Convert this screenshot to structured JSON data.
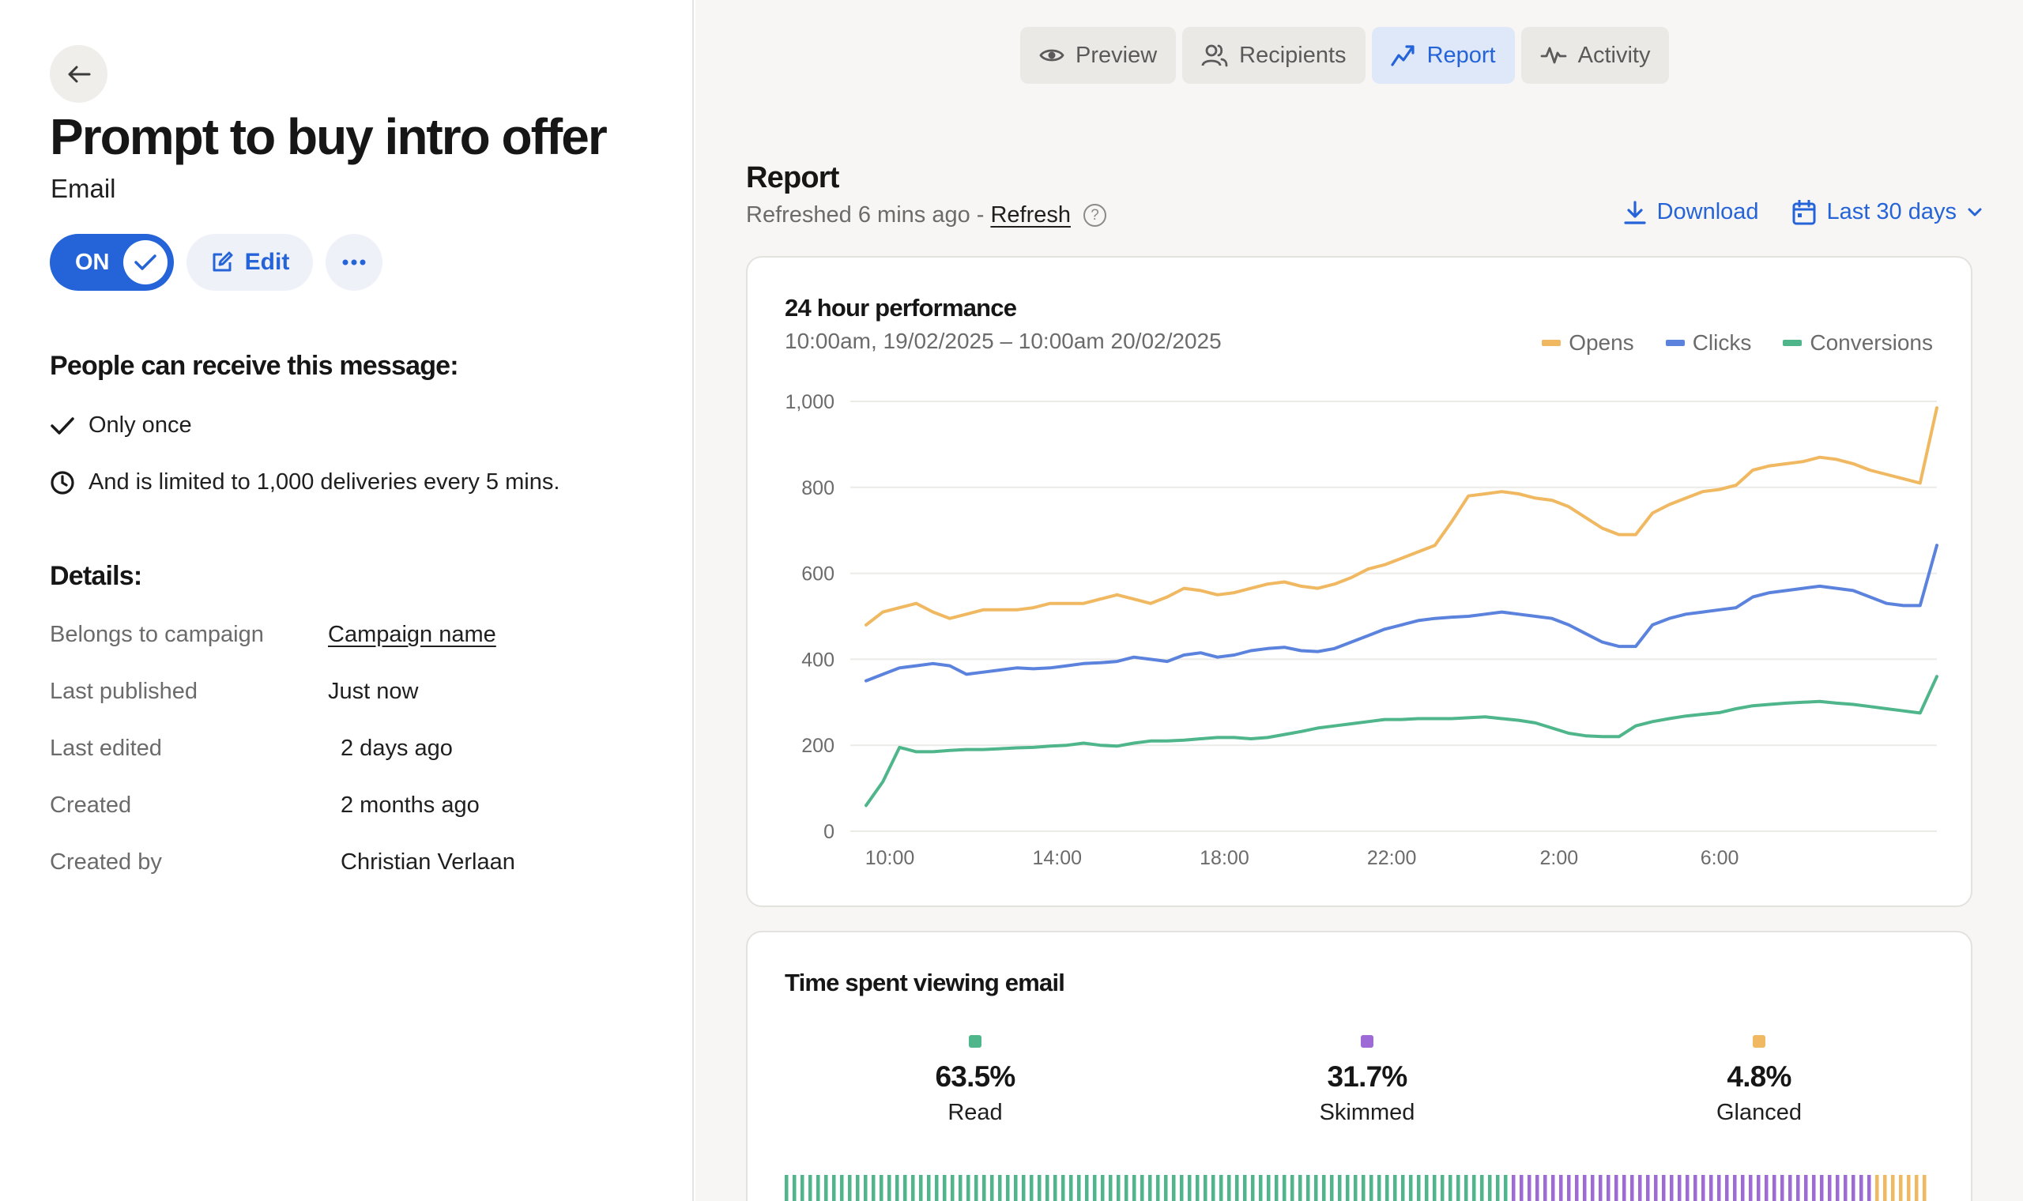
{
  "left": {
    "title": "Prompt to buy intro offer",
    "type": "Email",
    "toggle_label": "ON",
    "edit_label": "Edit",
    "audience_heading": "People can receive this message:",
    "rules": [
      "Only once",
      "And is limited to 1,000 deliveries every 5 mins."
    ],
    "details_heading": "Details:",
    "details": [
      {
        "label": "Belongs to campaign",
        "value": "Campaign name"
      },
      {
        "label": "Last published",
        "value": "Just now"
      },
      {
        "label": "Last edited",
        "value": "2 days ago"
      },
      {
        "label": "Created",
        "value": "2 months ago"
      },
      {
        "label": "Created by",
        "value": "Christian Verlaan"
      }
    ]
  },
  "tabs": [
    {
      "label": "Preview",
      "icon": "eye-icon"
    },
    {
      "label": "Recipients",
      "icon": "users-icon"
    },
    {
      "label": "Report",
      "icon": "trend-icon",
      "active": true
    },
    {
      "label": "Activity",
      "icon": "activity-icon"
    }
  ],
  "report": {
    "heading": "Report",
    "refreshed_text": "Refreshed 6 mins ago -",
    "refresh_link": "Refresh",
    "download_label": "Download",
    "range_label": "Last 30 days"
  },
  "colors": {
    "accent": "#2563d9",
    "opens": "#f0b860",
    "clicks": "#5b82dc",
    "conversions": "#4fb58a",
    "read": "#4fb58a",
    "skimmed": "#9d6ad6",
    "glanced": "#f0b860"
  },
  "chart_data": {
    "type": "line",
    "title": "24 hour performance",
    "subtitle": "10:00am, 19/02/2025  –  10:00am 20/02/2025",
    "x_tick_labels": [
      "10:00",
      "14:00",
      "18:00",
      "22:00",
      "2:00",
      "6:00"
    ],
    "y_ticks": [
      0,
      200,
      400,
      600,
      800,
      "1,000"
    ],
    "ylim": [
      0,
      1000
    ],
    "legend_position": "top-right",
    "grid": true,
    "n_points": 65,
    "series": [
      {
        "name": "Opens",
        "color": "#f0b860",
        "values": [
          480,
          510,
          520,
          530,
          510,
          495,
          505,
          515,
          515,
          515,
          520,
          530,
          530,
          530,
          540,
          550,
          540,
          530,
          545,
          565,
          560,
          550,
          555,
          565,
          575,
          580,
          570,
          565,
          575,
          590,
          610,
          620,
          635,
          650,
          665,
          720,
          780,
          785,
          790,
          785,
          775,
          770,
          755,
          730,
          705,
          690,
          690,
          740,
          760,
          775,
          790,
          795,
          805,
          840,
          850,
          855,
          860,
          870,
          865,
          855,
          840,
          830,
          820,
          810,
          985
        ]
      },
      {
        "name": "Clicks",
        "color": "#5b82dc",
        "values": [
          350,
          365,
          380,
          385,
          390,
          385,
          365,
          370,
          375,
          380,
          378,
          380,
          385,
          390,
          392,
          395,
          405,
          400,
          395,
          410,
          415,
          405,
          410,
          420,
          425,
          428,
          420,
          418,
          425,
          440,
          455,
          470,
          480,
          490,
          495,
          498,
          500,
          505,
          510,
          505,
          500,
          495,
          480,
          460,
          440,
          430,
          430,
          480,
          495,
          505,
          510,
          515,
          520,
          545,
          555,
          560,
          565,
          570,
          565,
          560,
          545,
          530,
          525,
          525,
          665
        ]
      },
      {
        "name": "Conversions",
        "color": "#4fb58a",
        "values": [
          60,
          115,
          195,
          185,
          185,
          188,
          190,
          190,
          192,
          194,
          195,
          198,
          200,
          205,
          200,
          198,
          205,
          210,
          210,
          212,
          215,
          218,
          218,
          215,
          218,
          225,
          232,
          240,
          245,
          250,
          255,
          260,
          260,
          262,
          262,
          262,
          264,
          266,
          262,
          258,
          252,
          240,
          228,
          222,
          220,
          220,
          245,
          255,
          262,
          268,
          272,
          276,
          285,
          292,
          295,
          298,
          300,
          302,
          298,
          295,
          290,
          285,
          280,
          275,
          360
        ]
      }
    ]
  },
  "time_spent": {
    "title": "Time spent viewing email",
    "segments": [
      {
        "value": "63.5%",
        "label": "Read",
        "fraction": 0.635
      },
      {
        "value": "31.7%",
        "label": "Skimmed",
        "fraction": 0.317
      },
      {
        "value": "4.8%",
        "label": "Glanced",
        "fraction": 0.048
      }
    ]
  }
}
